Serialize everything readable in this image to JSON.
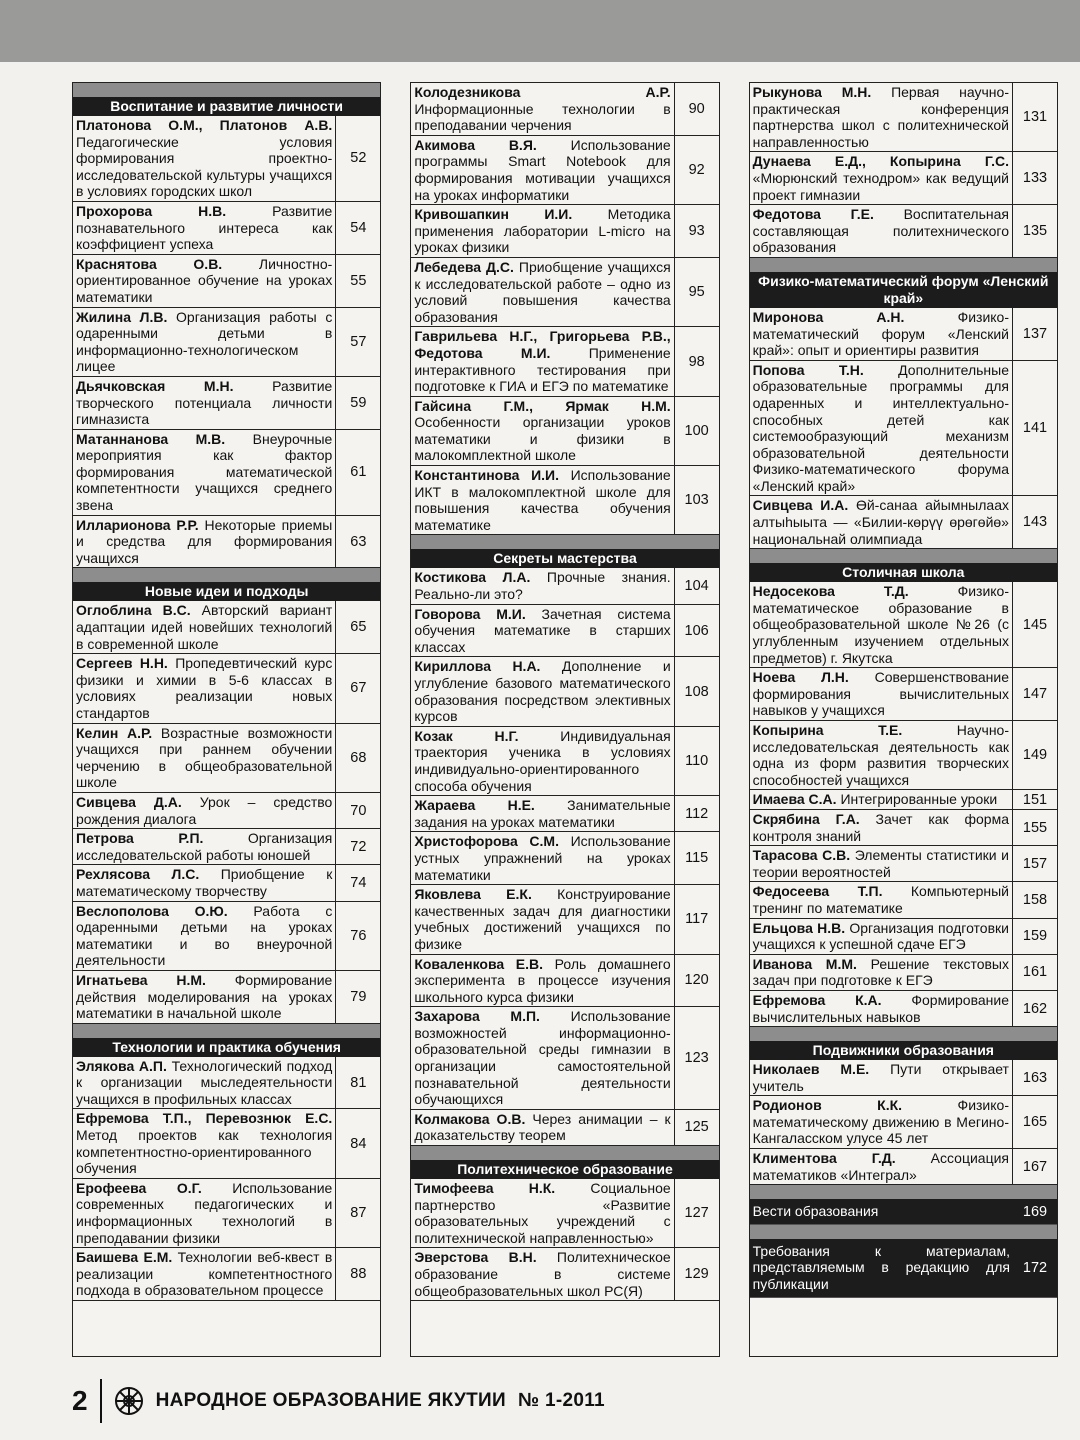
{
  "columns": [
    {
      "sections": [
        {
          "title": "Воспитание и развитие личности",
          "entries": [
            {
              "author": "Платонова О.М., Платонов А.В.",
              "title": "Педагогические условия формирования проектно-исследовательской культуры учащихся в условиях городских школ",
              "page": 52
            },
            {
              "author": "Прохорова Н.В.",
              "title": "Развитие познавательного интереса как коэффициент успеха",
              "page": 54
            },
            {
              "author": "Краснятова О.В.",
              "title": "Личностно-ориентированное обучение на уроках математики",
              "page": 55
            },
            {
              "author": "Жилина Л.В.",
              "title": "Организация работы с одаренными детьми в информационно-технологическом лицее",
              "page": 57
            },
            {
              "author": "Дьячковская М.Н.",
              "title": "Развитие творческого потенциала личности гимназиста",
              "page": 59
            },
            {
              "author": "Матаннанова М.В.",
              "title": "Внеурочные мероприятия как фактор формирования математической компетентности учащихся среднего звена",
              "page": 61
            },
            {
              "author": "Илларионова Р.Р.",
              "title": "Некоторые приемы и средства для формирования учащихся",
              "page": 63
            }
          ]
        },
        {
          "title": "Новые идеи и подходы",
          "entries": [
            {
              "author": "Оглоблина В.С.",
              "title": "Авторский вариант адаптации идей новейших технологий в современной школе",
              "page": 65
            },
            {
              "author": "Сергеев Н.Н.",
              "title": "Пропедевтический курс физики и химии в 5-6 классах в условиях реализации новых стандартов",
              "page": 67
            },
            {
              "author": "Келин А.Р.",
              "title": "Возрастные возможности учащихся при раннем обучении черчению в общеобразовательной школе",
              "page": 68
            },
            {
              "author": "Сивцева Д.А.",
              "title": "Урок – средство рождения диалога",
              "page": 70
            },
            {
              "author": "Петрова Р.П.",
              "title": "Организация исследовательской работы юношей",
              "page": 72
            },
            {
              "author": "Рехлясова Л.С.",
              "title": "Приобщение к математическому творчеству",
              "page": 74
            },
            {
              "author": "Веслополова О.Ю.",
              "title": "Работа с одаренными детьми на уроках математики и во внеурочной деятельности",
              "page": 76
            },
            {
              "author": "Игнатьева Н.М.",
              "title": "Формирование действия моделирования на уроках математики в начальной школе",
              "page": 79
            }
          ]
        },
        {
          "title": "Технологии и практика обучения",
          "entries": [
            {
              "author": "Элякова А.П.",
              "title": "Технологический подход к организации мыследеятельности учащихся в профильных классах",
              "page": 81
            },
            {
              "author": "Ефремова Т.П., Перевознюк Е.С.",
              "title": "Метод проектов как технология компетентностно-ориентированного обучения",
              "page": 84
            },
            {
              "author": "Ерофеева О.Г.",
              "title": "Использование современных педагогических и информационных технологий в преподавании физики",
              "page": 87
            },
            {
              "author": "Баишева Е.М.",
              "title": "Технологии веб-квест в реализации компетентностного подхода в образовательном процессе",
              "page": 88
            }
          ]
        }
      ]
    },
    {
      "sections": [
        {
          "entries": [
            {
              "author": "Колодезникова А.Р.",
              "title": "Информационные технологии в преподавании черчения",
              "page": 90
            },
            {
              "author": "Акимова В.Я.",
              "title": "Использование программы Smart Notebook для формирования мотивации учащихся на уроках информатики",
              "page": 92
            },
            {
              "author": "Кривошапкин И.И.",
              "title": "Методика применения лаборатории L-micro на уроках физики",
              "page": 93
            },
            {
              "author": "Лебедева Д.С.",
              "title": "Приобщение учащихся к исследовательской работе – одно из условий повышения качества образования",
              "page": 95
            },
            {
              "author": "Гаврильева Н.Г., Григорьева Р.В., Федотова М.И.",
              "title": "Применение интерактивного тестирования при подготовке к ГИА и ЕГЭ по математике",
              "page": 98
            },
            {
              "author": "Гайсина Г.М., Ярмак Н.М.",
              "title": "Особенности организации уроков математики и физики в малокомплектной школе",
              "page": 100
            },
            {
              "author": "Константинова И.И.",
              "title": "Использование ИКТ в малокомплектной школе для повышения качества обучения математике",
              "page": 103
            }
          ]
        },
        {
          "title": "Секреты мастерства",
          "entries": [
            {
              "author": "Костикова Л.А.",
              "title": "Прочные знания. Реально-ли это?",
              "page": 104
            },
            {
              "author": "Говорова М.И.",
              "title": "Зачетная система обучения математике в старших классах",
              "page": 106
            },
            {
              "author": "Кириллова Н.А.",
              "title": "Дополнение и углубление базового математического образования посредством элективных курсов",
              "page": 108
            },
            {
              "author": "Козак Н.Г.",
              "title": "Индивидуальная траектория ученика в условиях индивидуально-ориентированного способа обучения",
              "page": 110
            },
            {
              "author": "Жараева Н.Е.",
              "title": "Занимательные задания на уроках математики",
              "page": 112
            },
            {
              "author": "Христофорова С.М.",
              "title": "Использование устных упражнений на уроках математики",
              "page": 115
            },
            {
              "author": "Яковлева Е.К.",
              "title": "Конструирование качественных задач для диагностики учебных достижений учащихся по физике",
              "page": 117
            },
            {
              "author": "Коваленкова Е.В.",
              "title": "Роль домашнего эксперимента в процессе изучения школьного курса физики",
              "page": 120
            },
            {
              "author": "Захарова М.П.",
              "title": "Использование возможностей информационно-образовательной среды гимназии в организации самостоятельной познавательной деятельности обучающихся",
              "page": 123
            },
            {
              "author": "Колмакова О.В.",
              "title": "Через анимации – к доказательству теорем",
              "page": 125
            }
          ]
        },
        {
          "title": "Политехническое образование",
          "entries": [
            {
              "author": "Тимофеева Н.К.",
              "title": "Социальное партнерство «Развитие образовательных учреждений с политехнической направленностью»",
              "page": 127
            },
            {
              "author": "Эверстова В.Н.",
              "title": "Политехническое образование в системе общеобразовательных школ РС(Я)",
              "page": 129
            }
          ]
        }
      ]
    },
    {
      "sections": [
        {
          "entries": [
            {
              "author": "Рыкунова М.Н.",
              "title": "Первая научно-практическая конференция партнерства школ с политехнической направленностью",
              "page": 131
            },
            {
              "author": "Дунаева Е.Д., Копырина Г.С.",
              "title": "«Мюрюнский технодром» как ведущий проект гимназии",
              "page": 133
            },
            {
              "author": "Федотова Г.Е.",
              "title": "Воспитательная составляющая политехнического образования",
              "page": 135
            }
          ]
        },
        {
          "title": "Физико-математический форум «Ленский край»",
          "entries": [
            {
              "author": "Миронова А.Н.",
              "title": "Физико-математический форум «Ленский край»: опыт и ориентиры развития",
              "page": 137
            },
            {
              "author": "Попова Т.Н.",
              "title": "Дополнительные образовательные программы для одаренных и интеллектуально-способных детей как системообразующий механизм образовательной деятельности Физико-математического форума «Ленский край»",
              "page": 141
            },
            {
              "author": "Сивцева И.А.",
              "title": "Өй-санаа айымнылаах алтыһыыта — «Билии-көрүү өрөгөйө» национальнай олимпиада",
              "page": 143
            }
          ]
        },
        {
          "title": "Столичная школа",
          "entries": [
            {
              "author": "Недосекова Т.Д.",
              "title": "Физико-математическое образование в общеобразовательной школе №26 (с углубленным изучением отдельных предметов) г. Якутска",
              "page": 145
            },
            {
              "author": "Ноева Л.Н.",
              "title": "Совершенствование формирования вычислительных навыков у учащихся",
              "page": 147
            },
            {
              "author": "Копырина Т.Е.",
              "title": "Научно-исследовательская деятельность как одна из форм развития творческих способностей учащихся",
              "page": 149
            },
            {
              "author": "Имаева С.А.",
              "title": "Интегрированные уроки",
              "page": 151
            },
            {
              "author": "Скрябина Г.А.",
              "title": "Зачет как форма контроля знаний",
              "page": 155
            },
            {
              "author": "Тарасова С.В.",
              "title": "Элементы статистики и теории вероятностей",
              "page": 157
            },
            {
              "author": "Федосеева Т.П.",
              "title": "Компьютерный тренинг по математике",
              "page": 158
            },
            {
              "author": "Ельцова Н.В.",
              "title": "Организация подготовки учащихся к успешной сдаче ЕГЭ",
              "page": 159
            },
            {
              "author": "Иванова М.М.",
              "title": "Решение текстовых задач при подготовке к ЕГЭ",
              "page": 161
            },
            {
              "author": "Ефремова К.А.",
              "title": "Формирование вычислительных навыков",
              "page": 162
            }
          ]
        },
        {
          "title": "Подвижники образования",
          "entries": [
            {
              "author": "Николаев М.Е.",
              "title": "Пути открывает учитель",
              "page": 163
            },
            {
              "author": "Родионов К.К.",
              "title": "Физико-математическому движению в Мегино-Кангаласском улусе 45 лет",
              "page": 165
            },
            {
              "author": "Климентова Г.Д.",
              "title": "Ассоциация математиков «Интеграл»",
              "page": 167
            }
          ]
        }
      ],
      "notices": [
        {
          "title": "Вести образования",
          "page": 169
        },
        {
          "title": "Требования к материалам, представляемым в редакцию для публикации",
          "page": 172
        }
      ]
    }
  ],
  "footer": {
    "page_number": "2",
    "journal": "НАРОДНОЕ ОБРАЗОВАНИЕ ЯКУТИИ",
    "issue": "№ 1-2011"
  }
}
